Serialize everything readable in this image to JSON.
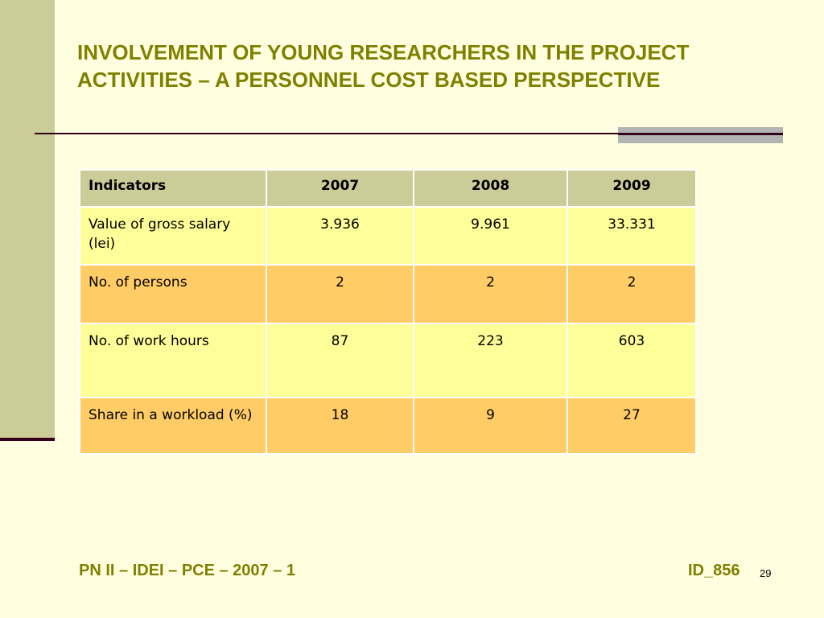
{
  "slide": {
    "title": "INVOLVEMENT OF YOUNG RESEARCHERS IN THE PROJECT ACTIVITIES – A PERSONNEL COST BASED PERSPECTIVE"
  },
  "table": {
    "headers": [
      "Indicators",
      "2007",
      "2008",
      "2009"
    ],
    "rows": [
      {
        "indicator": "Value of gross salary (lei)",
        "values": [
          "3.936",
          "9.961",
          "33.331"
        ]
      },
      {
        "indicator": "No. of persons",
        "values": [
          "2",
          "2",
          "2"
        ]
      },
      {
        "indicator": "No. of work hours",
        "values": [
          "87",
          "223",
          "603"
        ]
      },
      {
        "indicator": "Share in a workload (%)",
        "values": [
          "18",
          "9",
          "27"
        ]
      }
    ]
  },
  "footer": {
    "left": "PN II – IDEI – PCE – 2007 – 1",
    "id": "ID_856",
    "page_number": "29"
  },
  "colors": {
    "background": "#FFFFE0",
    "title": "#808000",
    "header_row": "#CCCC99",
    "row_yellow": "#FFFF99",
    "row_orange": "#FFCC66"
  }
}
